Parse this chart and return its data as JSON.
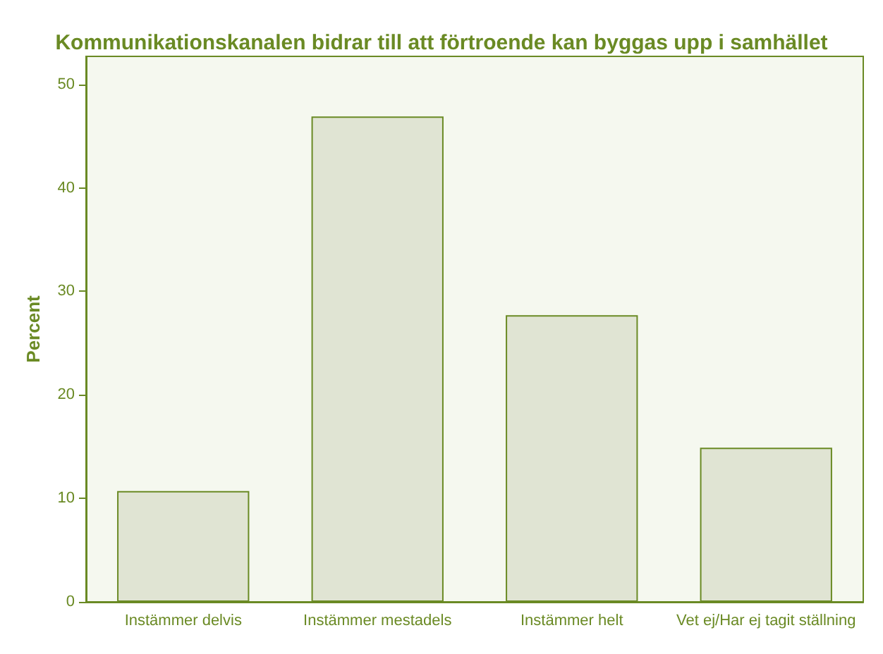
{
  "chart_data": {
    "type": "bar",
    "title": "Kommunikationskanalen bidrar till att förtroende kan byggas upp i samhället",
    "ylabel": "Percent",
    "categories": [
      "Instämmer delvis",
      "Instämmer mestadels",
      "Instämmer helt",
      "Vet ej/Har ej tagit ställning"
    ],
    "values": [
      10.7,
      46.9,
      27.7,
      14.9
    ],
    "color": "#e0e4d3",
    "ylim": [
      0,
      52.7
    ],
    "yticks": [
      0,
      10,
      20,
      30,
      40,
      50
    ]
  }
}
